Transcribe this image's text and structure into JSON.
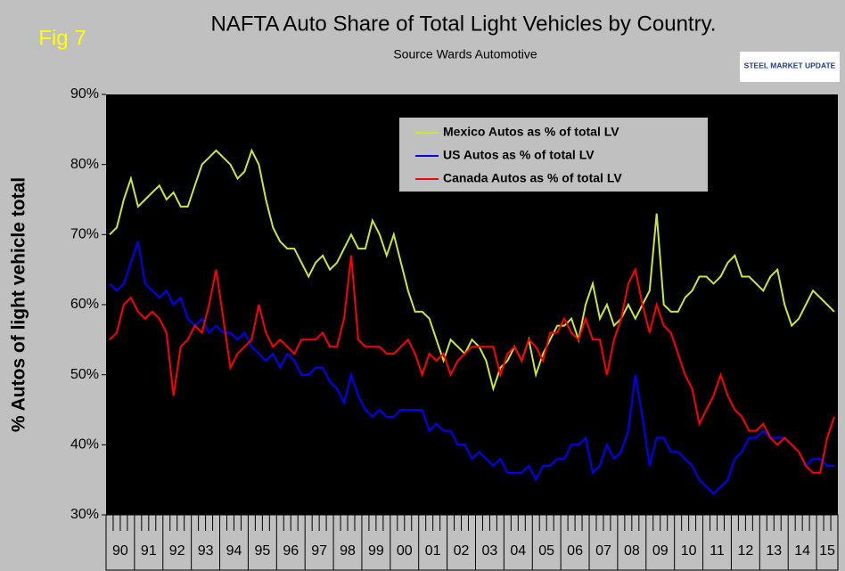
{
  "fig_label": "Fig 7",
  "logo": "STEEL MARKET UPDATE",
  "chart_data": {
    "type": "line",
    "title": "NAFTA   Auto Share of Total Light Vehicles by Country.",
    "subtitle": "Source Wards Automotive",
    "y_label": "% Autos of light vehicle total",
    "categories": [
      "90",
      null,
      null,
      null,
      "91",
      null,
      null,
      null,
      "92",
      null,
      null,
      null,
      "93",
      null,
      null,
      null,
      "94",
      null,
      null,
      null,
      "95",
      null,
      null,
      null,
      "96",
      null,
      null,
      null,
      "97",
      null,
      null,
      null,
      "98",
      null,
      null,
      null,
      "99",
      null,
      null,
      null,
      "00",
      null,
      null,
      null,
      "01",
      null,
      null,
      null,
      "02",
      null,
      null,
      null,
      "03",
      null,
      null,
      null,
      "04",
      null,
      null,
      null,
      "05",
      null,
      null,
      null,
      "06",
      null,
      null,
      null,
      "07",
      null,
      null,
      null,
      "08",
      null,
      null,
      null,
      "09",
      null,
      null,
      null,
      "10",
      null,
      null,
      null,
      "11",
      null,
      null,
      null,
      "12",
      null,
      null,
      null,
      "13",
      null,
      null,
      null,
      "14",
      null,
      null,
      null,
      "15",
      null,
      null
    ],
    "series": [
      {
        "name": "Mexico Autos as % of total LV",
        "color": "#c6e83a",
        "values": [
          70,
          71,
          75,
          78,
          74,
          75,
          76,
          77,
          75,
          76,
          74,
          74,
          77,
          80,
          81,
          82,
          81,
          80,
          78,
          79,
          82,
          80,
          75,
          71,
          69,
          68,
          68,
          66,
          64,
          66,
          67,
          65,
          66,
          68,
          70,
          68,
          68,
          72,
          70,
          67,
          70,
          66,
          62,
          59,
          59,
          58,
          55,
          52,
          55,
          54,
          53,
          55,
          54,
          52,
          48,
          51,
          52,
          54,
          52,
          55,
          50,
          53,
          55,
          57,
          57,
          58,
          55,
          60,
          63,
          58,
          60,
          57,
          58,
          60,
          58,
          60,
          62,
          73,
          60,
          59,
          59,
          61,
          62,
          64,
          64,
          63,
          64,
          66,
          67,
          64,
          64,
          63,
          62,
          64,
          65,
          60,
          57,
          58,
          60,
          62,
          61,
          60,
          59
        ]
      },
      {
        "name": "US Autos as % of total LV",
        "color": "#0000ff",
        "values": [
          63,
          62,
          63,
          66,
          69,
          63,
          62,
          61,
          62,
          60,
          61,
          58,
          57,
          58,
          56,
          57,
          56,
          56,
          55,
          56,
          54,
          53,
          52,
          53,
          51,
          53,
          52,
          50,
          50,
          51,
          51,
          49,
          48,
          46,
          50,
          47,
          45,
          44,
          45,
          44,
          44,
          45,
          45,
          45,
          45,
          42,
          43,
          42,
          42,
          40,
          40,
          38,
          39,
          38,
          37,
          38,
          36,
          36,
          36,
          37,
          35,
          37,
          37,
          38,
          38,
          40,
          40,
          41,
          36,
          37,
          40,
          38,
          39,
          42,
          50,
          44,
          37,
          41,
          41,
          39,
          39,
          38,
          37,
          35,
          34,
          33,
          34,
          35,
          38,
          39,
          41,
          41,
          42,
          41,
          41,
          41,
          40,
          39,
          37,
          38,
          38,
          37,
          37
        ]
      },
      {
        "name": "Canada Autos as % of total LV",
        "color": "#ff0000",
        "values": [
          55,
          56,
          60,
          61,
          59,
          58,
          59,
          58,
          56,
          47,
          54,
          55,
          57,
          56,
          60,
          65,
          58,
          51,
          53,
          54,
          55,
          60,
          56,
          54,
          55,
          54,
          53,
          55,
          55,
          55,
          56,
          54,
          54,
          58,
          67,
          55,
          54,
          54,
          54,
          53,
          53,
          54,
          55,
          53,
          50,
          53,
          52,
          53,
          50,
          52,
          53,
          54,
          54,
          54,
          54,
          50,
          53,
          54,
          52,
          55,
          54,
          52,
          56,
          56,
          58,
          56,
          55,
          58,
          55,
          55,
          50,
          55,
          58,
          63,
          65,
          60,
          56,
          60,
          57,
          56,
          53,
          50,
          48,
          43,
          45,
          47,
          50,
          47,
          45,
          44,
          42,
          42,
          43,
          41,
          40,
          41,
          40,
          39,
          37,
          36,
          36,
          41,
          44
        ]
      }
    ],
    "ylim": [
      30,
      90
    ],
    "yticks": [
      {
        "value": 30,
        "label": "30%"
      },
      {
        "value": 40,
        "label": "40%"
      },
      {
        "value": 50,
        "label": "50%"
      },
      {
        "value": 60,
        "label": "60%"
      },
      {
        "value": 70,
        "label": "70%"
      },
      {
        "value": 80,
        "label": "80%"
      },
      {
        "value": 90,
        "label": "90%"
      }
    ],
    "grid": false
  }
}
